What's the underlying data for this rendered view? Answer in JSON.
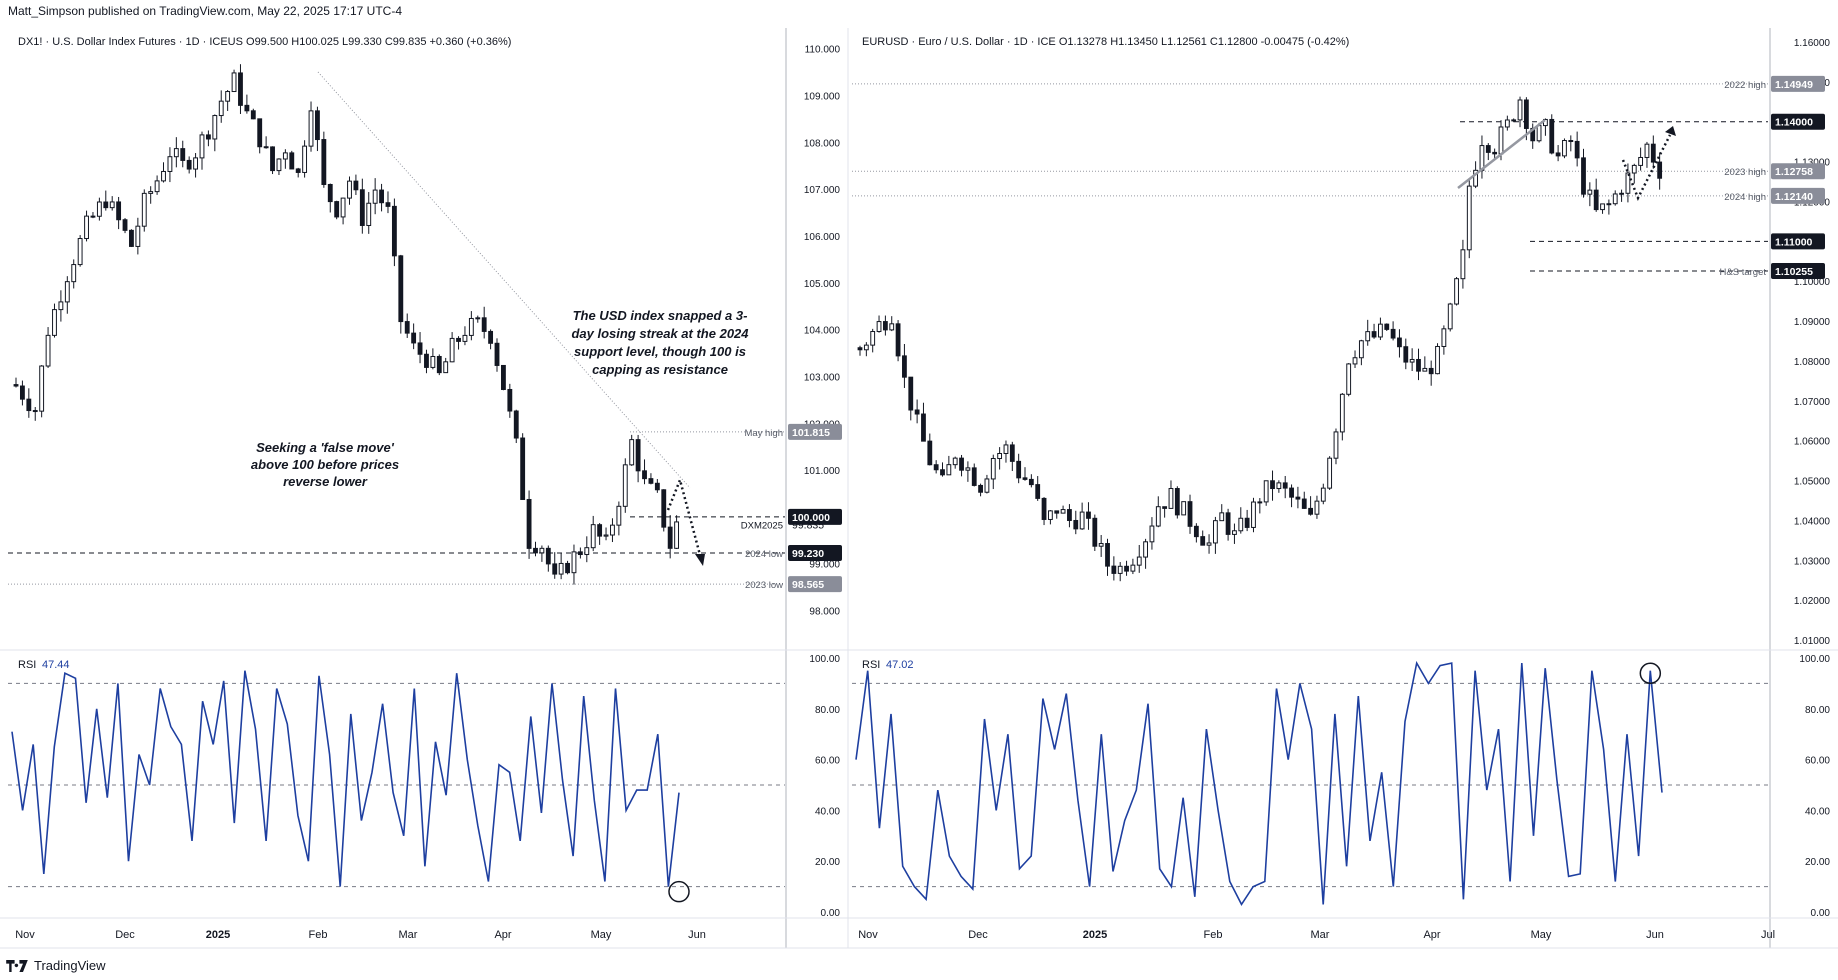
{
  "header": {
    "publisher": "Matt_Simpson published on TradingView.com, May 22, 2025 17:17 UTC-4"
  },
  "footer": {
    "brand": "TradingView"
  },
  "colors": {
    "up": "#131722",
    "down": "#131722",
    "rsi": "#1e3fa0",
    "grid": "#d1d4dc",
    "label_bg": "#131722",
    "gray_label": "#8a8d99"
  },
  "chart_data": [
    {
      "type": "candlestick",
      "legend": "DX1! · U.S. Dollar Index Futures · 1D · ICEUS  O99.500  H100.025  L99.330  C99.835  +0.360 (+0.36%)",
      "ylim": [
        97.2,
        110.4
      ],
      "y_ticks": [
        "110.000",
        "109.000",
        "108.000",
        "107.000",
        "106.000",
        "105.000",
        "104.000",
        "103.000",
        "102.000",
        "101.000",
        "99.000",
        "98.000"
      ],
      "x_ticks": [
        "Nov",
        "Dec",
        "2025",
        "Feb",
        "Mar",
        "Apr",
        "May",
        "Jun"
      ],
      "anchors": [
        [
          0,
          102.8
        ],
        [
          3,
          102.3
        ],
        [
          5,
          104.0
        ],
        [
          8,
          105.2
        ],
        [
          11,
          106.2
        ],
        [
          14,
          106.8
        ],
        [
          16,
          106.3
        ],
        [
          18,
          105.8
        ],
        [
          20,
          106.7
        ],
        [
          22,
          107.2
        ],
        [
          24,
          107.8
        ],
        [
          26,
          107.5
        ],
        [
          28,
          107.8
        ],
        [
          30,
          108.3
        ],
        [
          32,
          108.9
        ],
        [
          34,
          109.3
        ],
        [
          36,
          108.6
        ],
        [
          38,
          108.1
        ],
        [
          40,
          107.4
        ],
        [
          42,
          107.9
        ],
        [
          44,
          107.3
        ],
        [
          46,
          108.9
        ],
        [
          48,
          107.0
        ],
        [
          50,
          106.6
        ],
        [
          52,
          107.2
        ],
        [
          54,
          106.4
        ],
        [
          56,
          107.0
        ],
        [
          58,
          106.5
        ],
        [
          60,
          104.2
        ],
        [
          62,
          103.6
        ],
        [
          64,
          103.4
        ],
        [
          66,
          103.0
        ],
        [
          68,
          103.6
        ],
        [
          70,
          104.0
        ],
        [
          72,
          104.1
        ],
        [
          74,
          103.9
        ],
        [
          76,
          102.8
        ],
        [
          78,
          101.5
        ],
        [
          80,
          99.5
        ],
        [
          82,
          99.4
        ],
        [
          84,
          98.6
        ],
        [
          86,
          99.0
        ],
        [
          88,
          99.3
        ],
        [
          90,
          99.7
        ],
        [
          92,
          99.4
        ],
        [
          94,
          100.4
        ],
        [
          96,
          101.6
        ],
        [
          98,
          100.7
        ],
        [
          100,
          100.4
        ],
        [
          102,
          99.4
        ],
        [
          103,
          99.84
        ]
      ],
      "series": [
        {
          "name": "RSI",
          "value_label": "47.44",
          "ylim": [
            0,
            100
          ],
          "levels": [
            90,
            50,
            10
          ],
          "values": [
            71,
            40,
            66,
            15,
            65,
            94,
            92,
            43,
            80,
            45,
            90,
            20,
            62,
            50,
            88,
            73,
            66,
            28,
            83,
            66,
            91,
            35,
            95,
            72,
            28,
            88,
            74,
            38,
            20,
            93,
            62,
            10,
            78,
            36,
            55,
            82,
            47,
            30,
            88,
            18,
            67,
            46,
            94,
            60,
            34,
            12,
            58,
            55,
            28,
            77,
            39,
            90,
            52,
            22,
            85,
            44,
            12,
            88,
            40,
            48,
            48,
            70,
            10,
            47
          ],
          "annotations": [
            {
              "x": 63,
              "y": 8,
              "kind": "circle"
            }
          ]
        }
      ],
      "levels": [
        {
          "label": "May high",
          "value": 101.815,
          "style": "dotted",
          "badge": "101.815",
          "badge_style": "gray"
        },
        {
          "label": "",
          "value": 100.0,
          "style": "dashed",
          "badge": "100.000",
          "badge_style": "dark"
        },
        {
          "label": "DXM2025",
          "value": 99.835,
          "style": "none",
          "badge": "99.835",
          "badge_style": "plain"
        },
        {
          "label": "2024 low",
          "value": 99.23,
          "style": "dashed",
          "badge": "99.230",
          "badge_style": "dark"
        },
        {
          "label": "2023 low",
          "value": 98.565,
          "style": "dotted",
          "badge": "98.565",
          "badge_style": "gray"
        }
      ],
      "annotations": [
        {
          "text": [
            "The USD index snapped a 3-",
            "day losing streak at the 2024",
            "support level, though 100 is",
            "capping as resistance"
          ]
        },
        {
          "text": [
            "Seeking a 'false move'",
            "above 100 before prices",
            "reverse lower"
          ]
        }
      ]
    },
    {
      "type": "candlestick",
      "legend": "EURUSD · Euro / U.S. Dollar · 1D · ICE  O1.13278  H1.13450  L1.12561  C1.12800  -0.00475 (-0.42%)",
      "ylim": [
        1.008,
        1.163
      ],
      "y_ticks": [
        "1.16000",
        "1.15000",
        "1.13000",
        "1.12000",
        "1.10000",
        "1.09000",
        "1.08000",
        "1.07000",
        "1.06000",
        "1.05000",
        "1.04000",
        "1.03000",
        "1.02000",
        "1.01000"
      ],
      "x_ticks": [
        "Nov",
        "Dec",
        "2025",
        "Feb",
        "Mar",
        "Apr",
        "May",
        "Jun",
        "Jul"
      ],
      "anchors": [
        [
          0,
          1.083
        ],
        [
          3,
          1.089
        ],
        [
          5,
          1.092
        ],
        [
          7,
          1.075
        ],
        [
          9,
          1.064
        ],
        [
          11,
          1.055
        ],
        [
          13,
          1.049
        ],
        [
          15,
          1.057
        ],
        [
          17,
          1.053
        ],
        [
          19,
          1.049
        ],
        [
          21,
          1.056
        ],
        [
          23,
          1.058
        ],
        [
          25,
          1.052
        ],
        [
          27,
          1.049
        ],
        [
          29,
          1.039
        ],
        [
          31,
          1.043
        ],
        [
          33,
          1.04
        ],
        [
          35,
          1.041
        ],
        [
          37,
          1.035
        ],
        [
          39,
          1.029
        ],
        [
          41,
          1.028
        ],
        [
          43,
          1.031
        ],
        [
          45,
          1.036
        ],
        [
          47,
          1.044
        ],
        [
          49,
          1.046
        ],
        [
          51,
          1.042
        ],
        [
          53,
          1.038
        ],
        [
          55,
          1.034
        ],
        [
          57,
          1.041
        ],
        [
          59,
          1.036
        ],
        [
          61,
          1.04
        ],
        [
          63,
          1.046
        ],
        [
          65,
          1.049
        ],
        [
          67,
          1.047
        ],
        [
          69,
          1.044
        ],
        [
          71,
          1.04
        ],
        [
          73,
          1.05
        ],
        [
          75,
          1.064
        ],
        [
          77,
          1.081
        ],
        [
          79,
          1.085
        ],
        [
          81,
          1.086
        ],
        [
          83,
          1.088
        ],
        [
          85,
          1.082
        ],
        [
          87,
          1.079
        ],
        [
          89,
          1.077
        ],
        [
          91,
          1.081
        ],
        [
          93,
          1.092
        ],
        [
          95,
          1.106
        ],
        [
          96,
          1.124
        ],
        [
          98,
          1.136
        ],
        [
          100,
          1.134
        ],
        [
          102,
          1.139
        ],
        [
          104,
          1.146
        ],
        [
          106,
          1.136
        ],
        [
          108,
          1.138
        ],
        [
          110,
          1.131
        ],
        [
          112,
          1.135
        ],
        [
          114,
          1.124
        ],
        [
          116,
          1.117
        ],
        [
          118,
          1.119
        ],
        [
          120,
          1.124
        ],
        [
          122,
          1.128
        ],
        [
          124,
          1.134
        ],
        [
          126,
          1.128
        ]
      ],
      "series": [
        {
          "name": "RSI",
          "value_label": "47.02",
          "ylim": [
            0,
            100
          ],
          "levels": [
            90,
            50,
            10
          ],
          "values": [
            60,
            95,
            33,
            78,
            18,
            10,
            5,
            48,
            22,
            14,
            9,
            76,
            40,
            70,
            17,
            22,
            84,
            64,
            86,
            44,
            10,
            70,
            16,
            36,
            48,
            82,
            17,
            10,
            45,
            6,
            72,
            40,
            12,
            3,
            10,
            12,
            88,
            60,
            90,
            72,
            3,
            78,
            18,
            85,
            28,
            55,
            10,
            75,
            98,
            90,
            97,
            98,
            5,
            95,
            48,
            72,
            12,
            98,
            30,
            96,
            52,
            14,
            15,
            95,
            64,
            12,
            70,
            22,
            95,
            47
          ],
          "annotations": [
            {
              "x": 68,
              "y": 94,
              "kind": "circle"
            }
          ]
        }
      ],
      "levels": [
        {
          "label": "2022 high",
          "value": 1.14949,
          "style": "dotted",
          "badge": "1.14949",
          "badge_style": "gray"
        },
        {
          "label": "",
          "value": 1.14,
          "style": "dashed",
          "badge": "1.14000",
          "badge_style": "dark"
        },
        {
          "label": "2023 high",
          "value": 1.12758,
          "style": "dotted",
          "badge": "1.12758",
          "badge_style": "gray"
        },
        {
          "label": "2024 high",
          "value": 1.1214,
          "style": "dotted",
          "badge": "1.12140",
          "badge_style": "gray"
        },
        {
          "label": "",
          "value": 1.11,
          "style": "dashed",
          "badge": "1.11000",
          "badge_style": "dark"
        },
        {
          "label": "H&S target",
          "value": 1.10255,
          "style": "dashed",
          "badge": "1.10255",
          "badge_style": "dark"
        }
      ]
    }
  ]
}
